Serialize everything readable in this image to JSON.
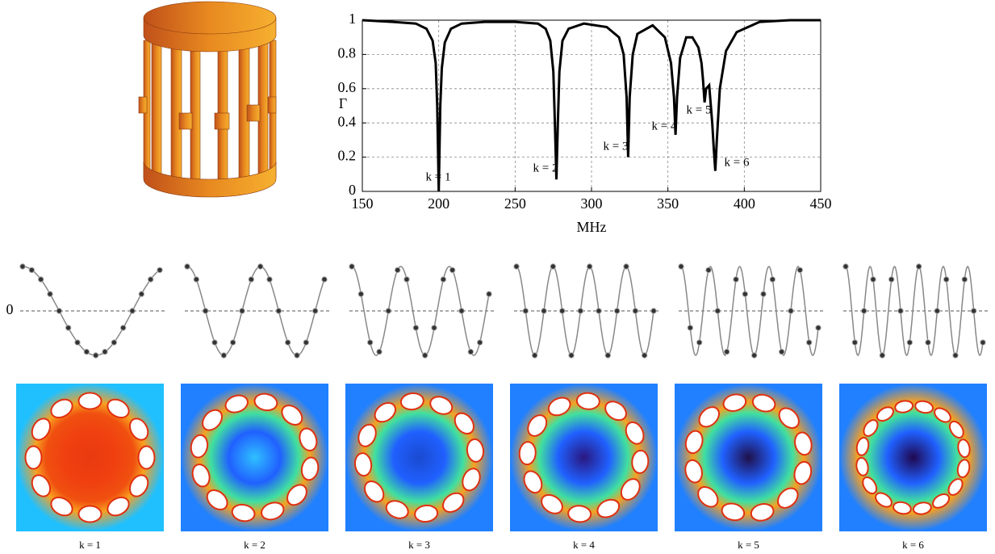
{
  "chart_data": [
    {
      "type": "line",
      "x_label": "MHz",
      "y_label": "Γ",
      "xlim": [
        150,
        450
      ],
      "ylim": [
        0,
        1
      ],
      "xticks": [
        150,
        200,
        250,
        300,
        350,
        400,
        450
      ],
      "yticks": [
        0,
        0.2,
        0.4,
        0.6,
        0.8,
        1
      ],
      "grid": true,
      "series": [
        {
          "color": "#000000",
          "x": [
            150,
            170,
            185,
            192,
            196,
            198,
            199,
            200,
            201,
            202,
            204,
            208,
            215,
            230,
            250,
            265,
            270,
            273,
            275,
            276,
            277,
            278,
            279,
            281,
            285,
            295,
            310,
            318,
            321,
            323,
            324,
            325,
            327,
            330,
            340,
            348,
            352,
            354,
            355,
            356,
            358,
            362,
            366,
            370,
            372,
            373,
            374,
            375,
            377,
            379,
            380,
            381,
            382,
            384,
            388,
            395,
            410,
            430,
            450
          ],
          "values": [
            1,
            0.99,
            0.98,
            0.95,
            0.88,
            0.75,
            0.5,
            0,
            0.5,
            0.72,
            0.87,
            0.95,
            0.98,
            0.99,
            0.99,
            0.98,
            0.95,
            0.88,
            0.7,
            0.4,
            0.07,
            0.4,
            0.7,
            0.88,
            0.95,
            0.98,
            0.96,
            0.9,
            0.8,
            0.55,
            0.2,
            0.55,
            0.8,
            0.92,
            0.97,
            0.9,
            0.75,
            0.55,
            0.33,
            0.55,
            0.78,
            0.9,
            0.9,
            0.84,
            0.75,
            0.65,
            0.52,
            0.6,
            0.62,
            0.4,
            0.25,
            0.12,
            0.3,
            0.6,
            0.82,
            0.93,
            0.99,
            1,
            1
          ]
        }
      ],
      "annotations": [
        "k = 1",
        "k = 2",
        "k = 3",
        "k = 4",
        "k = 5",
        "k = 6"
      ]
    },
    {
      "type": "mode-shapes",
      "zero_label": "0",
      "ylim": [
        -1,
        1
      ],
      "modes": [
        {
          "label": "k = 1",
          "k": 1,
          "values": [
            1,
            0.92,
            0.71,
            0.38,
            0,
            -0.38,
            -0.71,
            -0.92,
            -1,
            -0.92,
            -0.71,
            -0.38,
            0,
            0.38,
            0.71,
            0.92
          ]
        },
        {
          "label": "k = 2",
          "k": 2,
          "values": [
            1,
            0.71,
            0,
            -0.71,
            -1,
            -0.71,
            0,
            0.71,
            1,
            0.71,
            0,
            -0.71,
            -1,
            -0.71,
            0,
            0.71
          ]
        },
        {
          "label": "k = 3",
          "k": 3,
          "values": [
            1,
            0.38,
            -0.71,
            -0.92,
            0,
            0.92,
            0.71,
            -0.38,
            -1,
            -0.38,
            0.71,
            0.92,
            0,
            -0.92,
            -0.71,
            0.38
          ]
        },
        {
          "label": "k = 4",
          "k": 4,
          "values": [
            1,
            0,
            -1,
            0,
            1,
            0,
            -1,
            0,
            1,
            0,
            -1,
            0,
            1,
            0,
            -1,
            0
          ]
        },
        {
          "label": "k = 5",
          "k": 5,
          "values": [
            1,
            -0.38,
            -0.71,
            0.92,
            0,
            -0.92,
            0.71,
            0.38,
            -1,
            0.38,
            0.71,
            -0.92,
            0,
            0.92,
            -0.71,
            -0.38
          ]
        },
        {
          "label": "k = 6",
          "k": 6,
          "values": [
            1,
            -0.71,
            0,
            0.71,
            -1,
            0.71,
            0,
            -0.71,
            1,
            -0.71,
            0,
            0.71,
            -1,
            0.71,
            0,
            -0.71
          ]
        }
      ]
    }
  ]
}
